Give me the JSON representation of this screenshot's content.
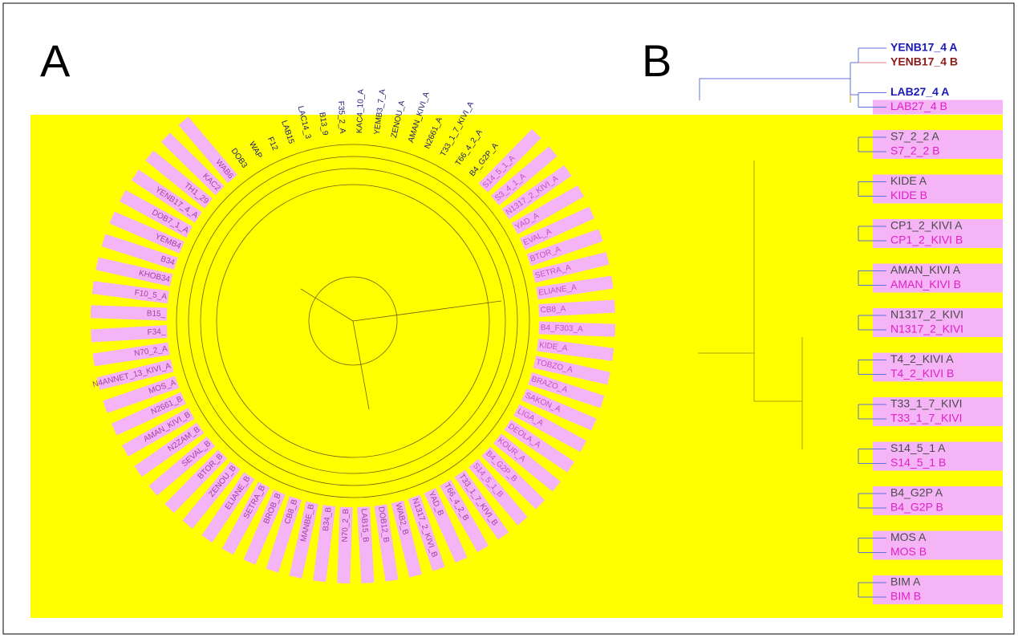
{
  "panel_a": {
    "label": "A",
    "labels": [
      "DOB3",
      "WAP",
      "F12",
      "LAB15",
      "LAC14_3",
      "B13_9",
      "F35_2_A",
      "KAC4_10_A",
      "YEMB3_7_A",
      "ZENOU_A",
      "AMAN_KIVI_A",
      "N2661_A",
      "T33_1_7_KIVI_A",
      "T66_4_2_A",
      "B4_G2P_A",
      "S14_5_1_A",
      "S3_4_1_A",
      "N1317_2_KIVI_A",
      "YAD_A",
      "EVAL_A",
      "BTOR_A",
      "SETRA_A",
      "ELIANE_A",
      "CB8_A",
      "B4_F303_A",
      "KIDE_A",
      "TOBZO_A",
      "BRAZO_A",
      "SAKON_A",
      "LIGA_A",
      "DEOLA_A",
      "KOUR_A",
      "B4_G2P_B",
      "S14_5_1_B",
      "T33_1_7_KIVI_B",
      "T66_4_2_B",
      "YAD_B",
      "N1317_2_KIVI_B",
      "WAB2_B",
      "DOB12_B",
      "LAB15_B",
      "N70_2_B",
      "B34_B",
      "MANBE_B",
      "CB8_B",
      "BROB_B",
      "SETRA_B",
      "ELIANE_B",
      "ZENOU_B",
      "BTOR_B",
      "SEVAL_B",
      "N2ZAM_B",
      "AMAN_KIVI_B",
      "N2661_B",
      "MOS_A",
      "N4ANNET_13_KIVI_A",
      "N70_2_A",
      "F34_",
      "B15_",
      "F10_5_A",
      "KHOB34",
      "B34",
      "YEMB4",
      "DOB7_1_A",
      "YENB17_4_A",
      "TH1_29",
      "KAC2",
      "WAB6"
    ]
  },
  "panel_b": {
    "label": "B",
    "leaves": [
      "YENB17_4 A",
      "YENB17_4 B",
      "LAB27_4 A",
      "LAB27_4 B",
      "S7_2_2 A",
      "S7_2_2 B",
      "KIDE A",
      "KIDE B",
      "CP1_2_KIVI A",
      "CP1_2_KIVI B",
      "AMAN_KIVI A",
      "AMAN_KIVI B",
      "N1317_2_KIVI",
      "N1317_2_KIVI",
      "T4_2_KIVI A",
      "T4_2_KIVI B",
      "T33_1_7_KIVI",
      "T33_1_7_KIVI",
      "S14_5_1 A",
      "S14_5_1 B",
      "B4_G2P A",
      "B4_G2P B",
      "MOS A",
      "MOS B",
      "BIM A",
      "BIM B"
    ]
  }
}
